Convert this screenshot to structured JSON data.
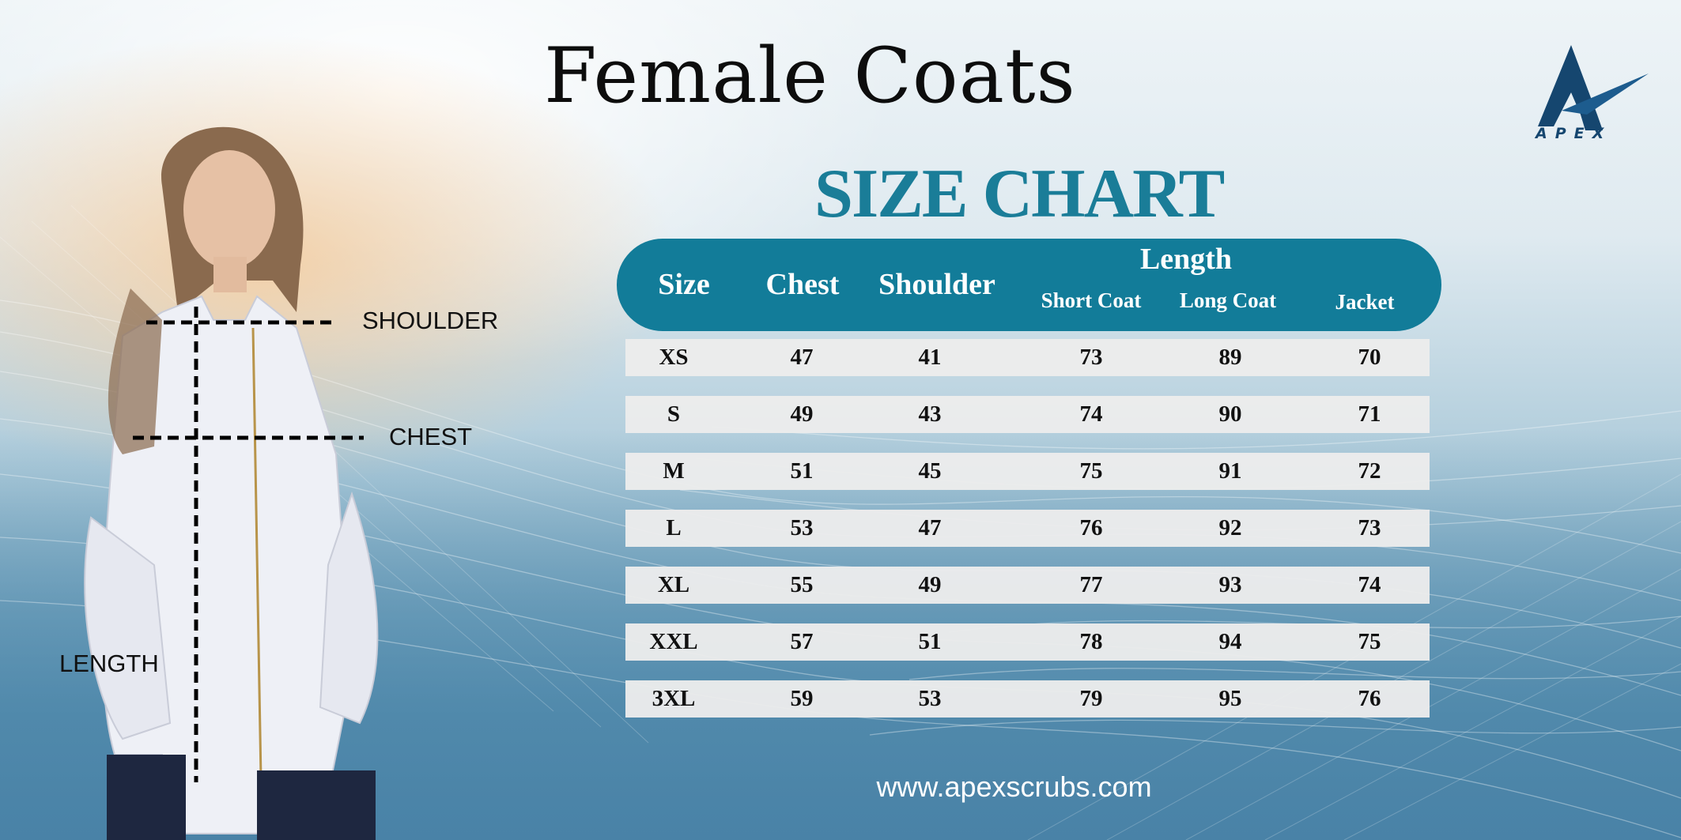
{
  "title": "Female Coats",
  "subtitle": "SIZE CHART",
  "logo": {
    "text": "APEX",
    "icon": "apex-logo-icon",
    "color": "#15466f"
  },
  "measure_labels": {
    "shoulder": "SHOULDER",
    "chest": "CHEST",
    "length": "LENGTH"
  },
  "table": {
    "header_color": "#127c99",
    "headers": {
      "size": "Size",
      "chest": "Chest",
      "shoulder": "Shoulder",
      "length_group": "Length",
      "short_coat": "Short Coat",
      "long_coat": "Long Coat",
      "jacket": "Jacket"
    },
    "rows": [
      [
        "XS",
        "47",
        "41",
        "73",
        "89",
        "70"
      ],
      [
        "S",
        "49",
        "43",
        "74",
        "90",
        "71"
      ],
      [
        "M",
        "51",
        "45",
        "75",
        "91",
        "72"
      ],
      [
        "L",
        "53",
        "47",
        "76",
        "92",
        "73"
      ],
      [
        "XL",
        "55",
        "49",
        "77",
        "93",
        "74"
      ],
      [
        "XXL",
        "57",
        "51",
        "78",
        "94",
        "75"
      ],
      [
        "3XL",
        "59",
        "53",
        "79",
        "95",
        "76"
      ]
    ]
  },
  "footer_url": "www.apexscrubs.com"
}
